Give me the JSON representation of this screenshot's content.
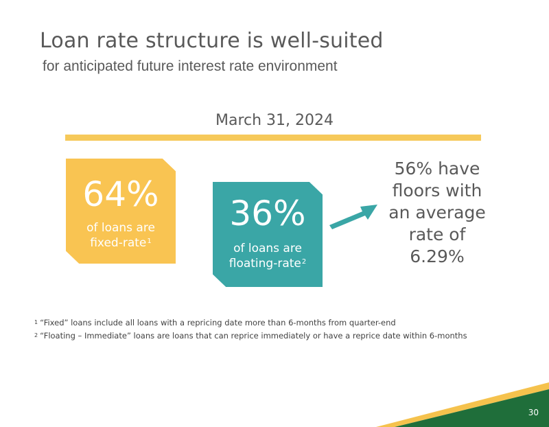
{
  "header": {
    "title": "Loan rate structure is well-suited",
    "subtitle": "for anticipated future interest rate environment"
  },
  "date_label": "March 31, 2024",
  "fixed": {
    "percent": "64%",
    "label_line1": "of loans are",
    "label_line2": "fixed-rate",
    "footnote_ref": "1"
  },
  "floating": {
    "percent": "36%",
    "label_line1": "of loans are",
    "label_line2": "floating-rate",
    "footnote_ref": "2"
  },
  "floors": {
    "lines": [
      "56% have",
      "floors with",
      "an average",
      "rate of",
      "6.29%"
    ]
  },
  "footnotes": [
    {
      "ref": "1",
      "text": "“Fixed” loans include all loans with a repricing date more than 6-months from quarter-end"
    },
    {
      "ref": "2",
      "text": "“Floating – Immediate” loans are loans that can reprice immediately or have a reprice date within 6-months"
    }
  ],
  "page_number": "30",
  "colors": {
    "fixed_box": "#f9c452",
    "floating_box": "#3aa6a6",
    "gold_bar": "#f6c95a",
    "corner_green": "#1f6e3a",
    "corner_gold": "#f5c24d",
    "text_gray": "#595959"
  }
}
